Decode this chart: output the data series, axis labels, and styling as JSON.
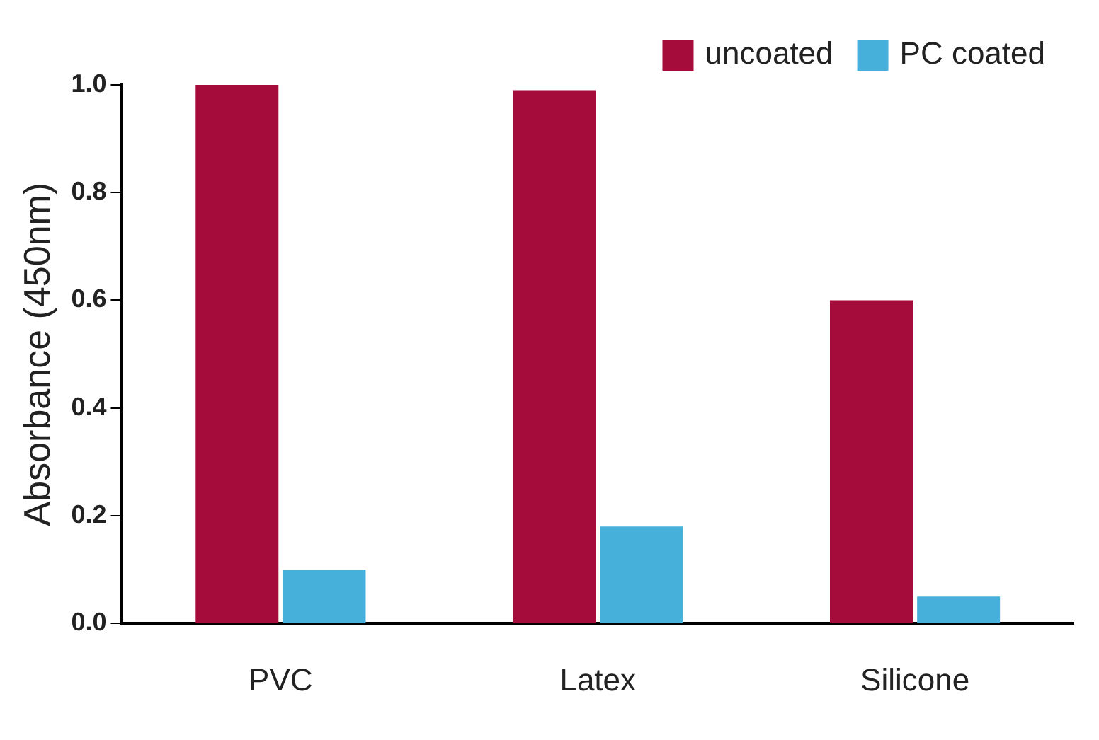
{
  "chart_data": {
    "type": "bar",
    "ylabel": "Absorbance (450nm)",
    "categories": [
      "PVC",
      "Latex",
      "Silicone"
    ],
    "series": [
      {
        "name": "uncoated",
        "color": "#a50b3b",
        "values": [
          1.0,
          0.99,
          0.6
        ]
      },
      {
        "name": "PC coated",
        "color": "#47b0da",
        "values": [
          0.1,
          0.18,
          0.05
        ]
      }
    ],
    "ylim": [
      0,
      1.0
    ],
    "yticks": [
      {
        "value": 0,
        "label": "0.0"
      },
      {
        "value": 0.2,
        "label": "0.2"
      },
      {
        "value": 0.4,
        "label": "0.4"
      },
      {
        "value": 0.6,
        "label": "0.6"
      },
      {
        "value": 0.8,
        "label": "0.8"
      },
      {
        "value": 1.0,
        "label": "1.0"
      }
    ],
    "grid": false,
    "legend": "top right"
  }
}
